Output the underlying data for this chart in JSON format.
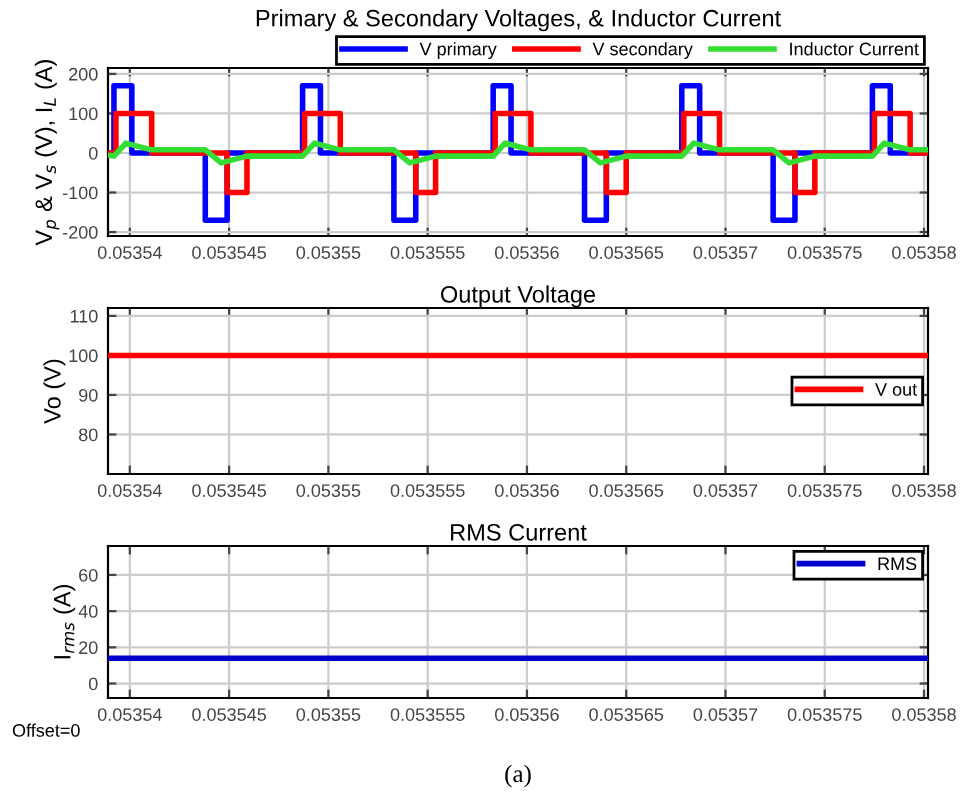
{
  "chart_data": [
    {
      "type": "step",
      "title": "Primary & Secondary Voltages, & Inductor Current",
      "ylabel": "V$_{p}$ & V$_{s}$ (V), I$_{L}$ (A)",
      "xlim": [
        0.0535389,
        0.0535802
      ],
      "xticks": [
        0.05354,
        0.053545,
        0.05355,
        0.053555,
        0.05356,
        0.053565,
        0.05357,
        0.053575,
        0.05358
      ],
      "ylim": [
        -210,
        215
      ],
      "yticks": [
        -200,
        -100,
        0,
        100,
        200
      ],
      "grid": true,
      "legend": "top",
      "series": [
        {
          "name": "V primary",
          "color": "#0000ff",
          "x": [
            0.0535389,
            0.0535392,
            0.0535401,
            0.0535438,
            0.0535449,
            0.0535487,
            0.0535496,
            0.0535533,
            0.0535544,
            0.0535583,
            0.0535592,
            0.0535629,
            0.053564,
            0.0535678,
            0.0535687,
            0.0535724,
            0.0535735,
            0.0535774,
            0.0535783,
            0.0535802
          ],
          "values": [
            0,
            170,
            0,
            -170,
            0,
            170,
            0,
            -170,
            0,
            170,
            0,
            -170,
            0,
            170,
            0,
            -170,
            0,
            170,
            0,
            0
          ]
        },
        {
          "name": "V secondary",
          "color": "#ff0000",
          "x": [
            0.0535389,
            0.0535393,
            0.0535411,
            0.0535449,
            0.0535459,
            0.0535488,
            0.0535506,
            0.0535544,
            0.0535554,
            0.0535584,
            0.0535602,
            0.053564,
            0.053565,
            0.0535679,
            0.0535697,
            0.0535735,
            0.0535745,
            0.0535775,
            0.0535793,
            0.0535802
          ],
          "values": [
            0,
            100,
            0,
            -100,
            0,
            100,
            0,
            -100,
            0,
            100,
            0,
            -100,
            0,
            100,
            0,
            -100,
            0,
            100,
            0,
            0
          ]
        },
        {
          "name": "Inductor Current",
          "type": "line",
          "color": "#33dd33",
          "x": [
            0.0535389,
            0.0535392,
            0.0535398,
            0.0535411,
            0.0535438,
            0.0535446,
            0.0535459,
            0.0535487,
            0.0535493,
            0.0535506,
            0.0535533,
            0.0535541,
            0.0535554,
            0.0535583,
            0.0535589,
            0.0535602,
            0.0535629,
            0.0535637,
            0.053565,
            0.0535678,
            0.0535684,
            0.0535697,
            0.0535724,
            0.0535732,
            0.0535745,
            0.0535774,
            0.053578,
            0.0535793,
            0.0535802
          ],
          "values": [
            -5,
            -8,
            25,
            8,
            8,
            -25,
            -8,
            -8,
            25,
            8,
            8,
            -25,
            -8,
            -8,
            25,
            8,
            8,
            -25,
            -8,
            -8,
            25,
            8,
            8,
            -25,
            -8,
            -8,
            25,
            8,
            8
          ]
        }
      ]
    },
    {
      "type": "line",
      "title": "Output Voltage",
      "ylabel": "Vo (V)",
      "xlim": [
        0.0535389,
        0.0535802
      ],
      "xticks": [
        0.05354,
        0.053545,
        0.05355,
        0.053555,
        0.05356,
        0.053565,
        0.05357,
        0.053575,
        0.05358
      ],
      "ylim": [
        70,
        112
      ],
      "yticks": [
        80,
        90,
        100,
        110
      ],
      "grid": true,
      "legend": "right",
      "series": [
        {
          "name": "V out",
          "color": "#ff0000",
          "x": [
            0.0535389,
            0.0535802
          ],
          "values": [
            100,
            100
          ]
        }
      ]
    },
    {
      "type": "line",
      "title": "RMS Current",
      "ylabel": "I$_{rms}$ (A)",
      "xlim": [
        0.0535389,
        0.0535802
      ],
      "xticks": [
        0.05354,
        0.053545,
        0.05355,
        0.053555,
        0.05356,
        0.053565,
        0.05357,
        0.053575,
        0.05358
      ],
      "ylim": [
        -8,
        76
      ],
      "yticks": [
        0,
        20,
        40,
        60
      ],
      "grid": true,
      "legend": "top right",
      "annotations": [
        "Offset=0",
        "(a)"
      ],
      "series": [
        {
          "name": "RMS",
          "color": "#0000cc",
          "x": [
            0.0535389,
            0.0535802
          ],
          "values": [
            14,
            14
          ]
        }
      ]
    }
  ]
}
